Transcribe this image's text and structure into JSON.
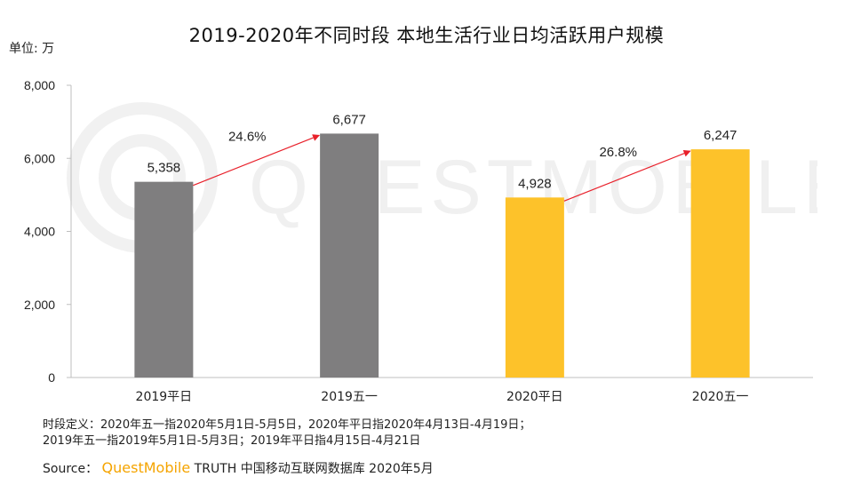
{
  "header": {
    "title": "2019-2020年不同时段 本地生活行业日均活跃用户规模",
    "unit_label": "单位: 万"
  },
  "watermark": {
    "text": "QUESTMOBILE"
  },
  "chart_data": {
    "type": "bar",
    "title": "2019-2020年不同时段 本地生活行业日均活跃用户规模",
    "ylabel": "单位: 万",
    "xlabel": "",
    "ylim": [
      0,
      8000
    ],
    "yticks": [
      0,
      2000,
      4000,
      6000,
      8000
    ],
    "ytick_labels": [
      "0",
      "2,000",
      "4,000",
      "6,000",
      "8,000"
    ],
    "grid": false,
    "categories": [
      "2019平日",
      "2019五一",
      "2020平日",
      "2020五一"
    ],
    "values": [
      5358,
      6677,
      4928,
      6247
    ],
    "value_labels": [
      "5,358",
      "6,677",
      "4,928",
      "6,247"
    ],
    "colors": [
      "#7f7e7f",
      "#7f7e7f",
      "#fdc22a",
      "#fdc22a"
    ],
    "annotations": [
      {
        "from": 0,
        "to": 1,
        "label": "24.6%",
        "color": "#e8202a"
      },
      {
        "from": 2,
        "to": 3,
        "label": "26.8%",
        "color": "#e8202a"
      }
    ]
  },
  "footer": {
    "notes": [
      "时段定义：2020年五一指2020年5月1日-5月5日，2020年平日指2020年4月13日-4月19日；",
      "2019年五一指2019年5月1日-5月3日；2019年平日指4月15日-4月21日"
    ],
    "source_label": "Source：",
    "source_brand": "QuestMobile",
    "source_rest": " TRUTH 中国移动互联网数据库 2020年5月"
  }
}
